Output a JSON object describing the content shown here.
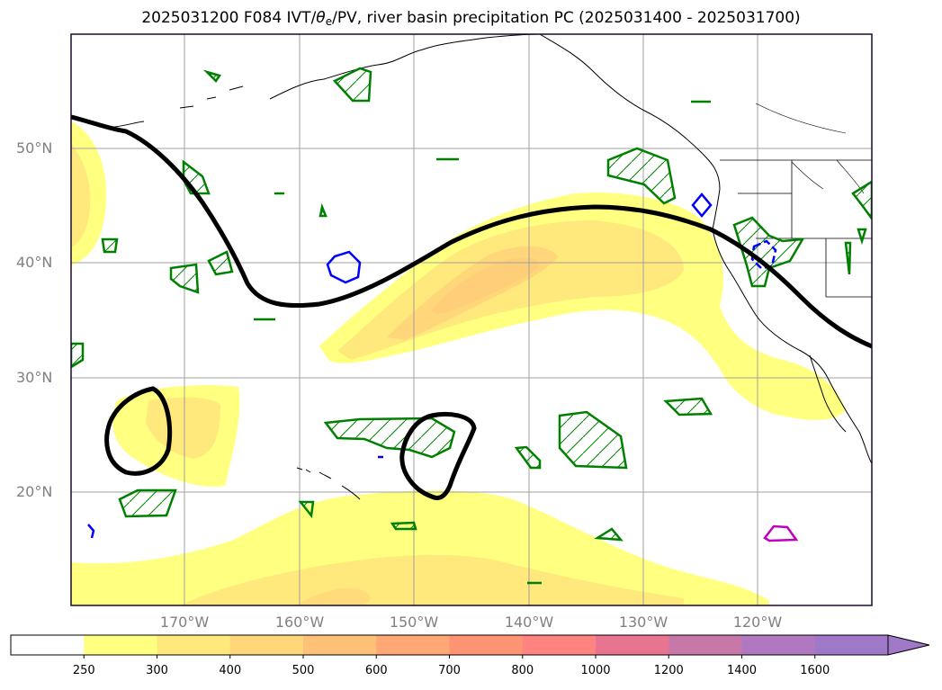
{
  "title": {
    "pre": "2025031200 F084 IVT/",
    "theta": "θ",
    "theta_sub": "e",
    "post": "/PV, river basin precipitation PC (2025031400 - 2025031700)"
  },
  "lat_labels": [
    "50°N",
    "40°N",
    "30°N",
    "20°N"
  ],
  "lon_labels": [
    "170°W",
    "160°W",
    "150°W",
    "140°W",
    "130°W",
    "120°W"
  ],
  "colorbar": {
    "ticks": [
      "250",
      "300",
      "400",
      "500",
      "600",
      "700",
      "800",
      "1000",
      "1200",
      "1400",
      "1600"
    ],
    "colors": [
      "#ffffff",
      "#ffff80",
      "#ffe87c",
      "#ffd67a",
      "#ffc078",
      "#ffa876",
      "#ff9474",
      "#ff8480",
      "#e87490",
      "#c878a8",
      "#b078c0",
      "#a078c8"
    ]
  },
  "legend_colors": {
    "pv_contour": "#000000",
    "theta_e_contour": "#008000",
    "blue_contour": "#0000ff",
    "magenta_contour": "#c000c0",
    "coastline": "#000000"
  }
}
